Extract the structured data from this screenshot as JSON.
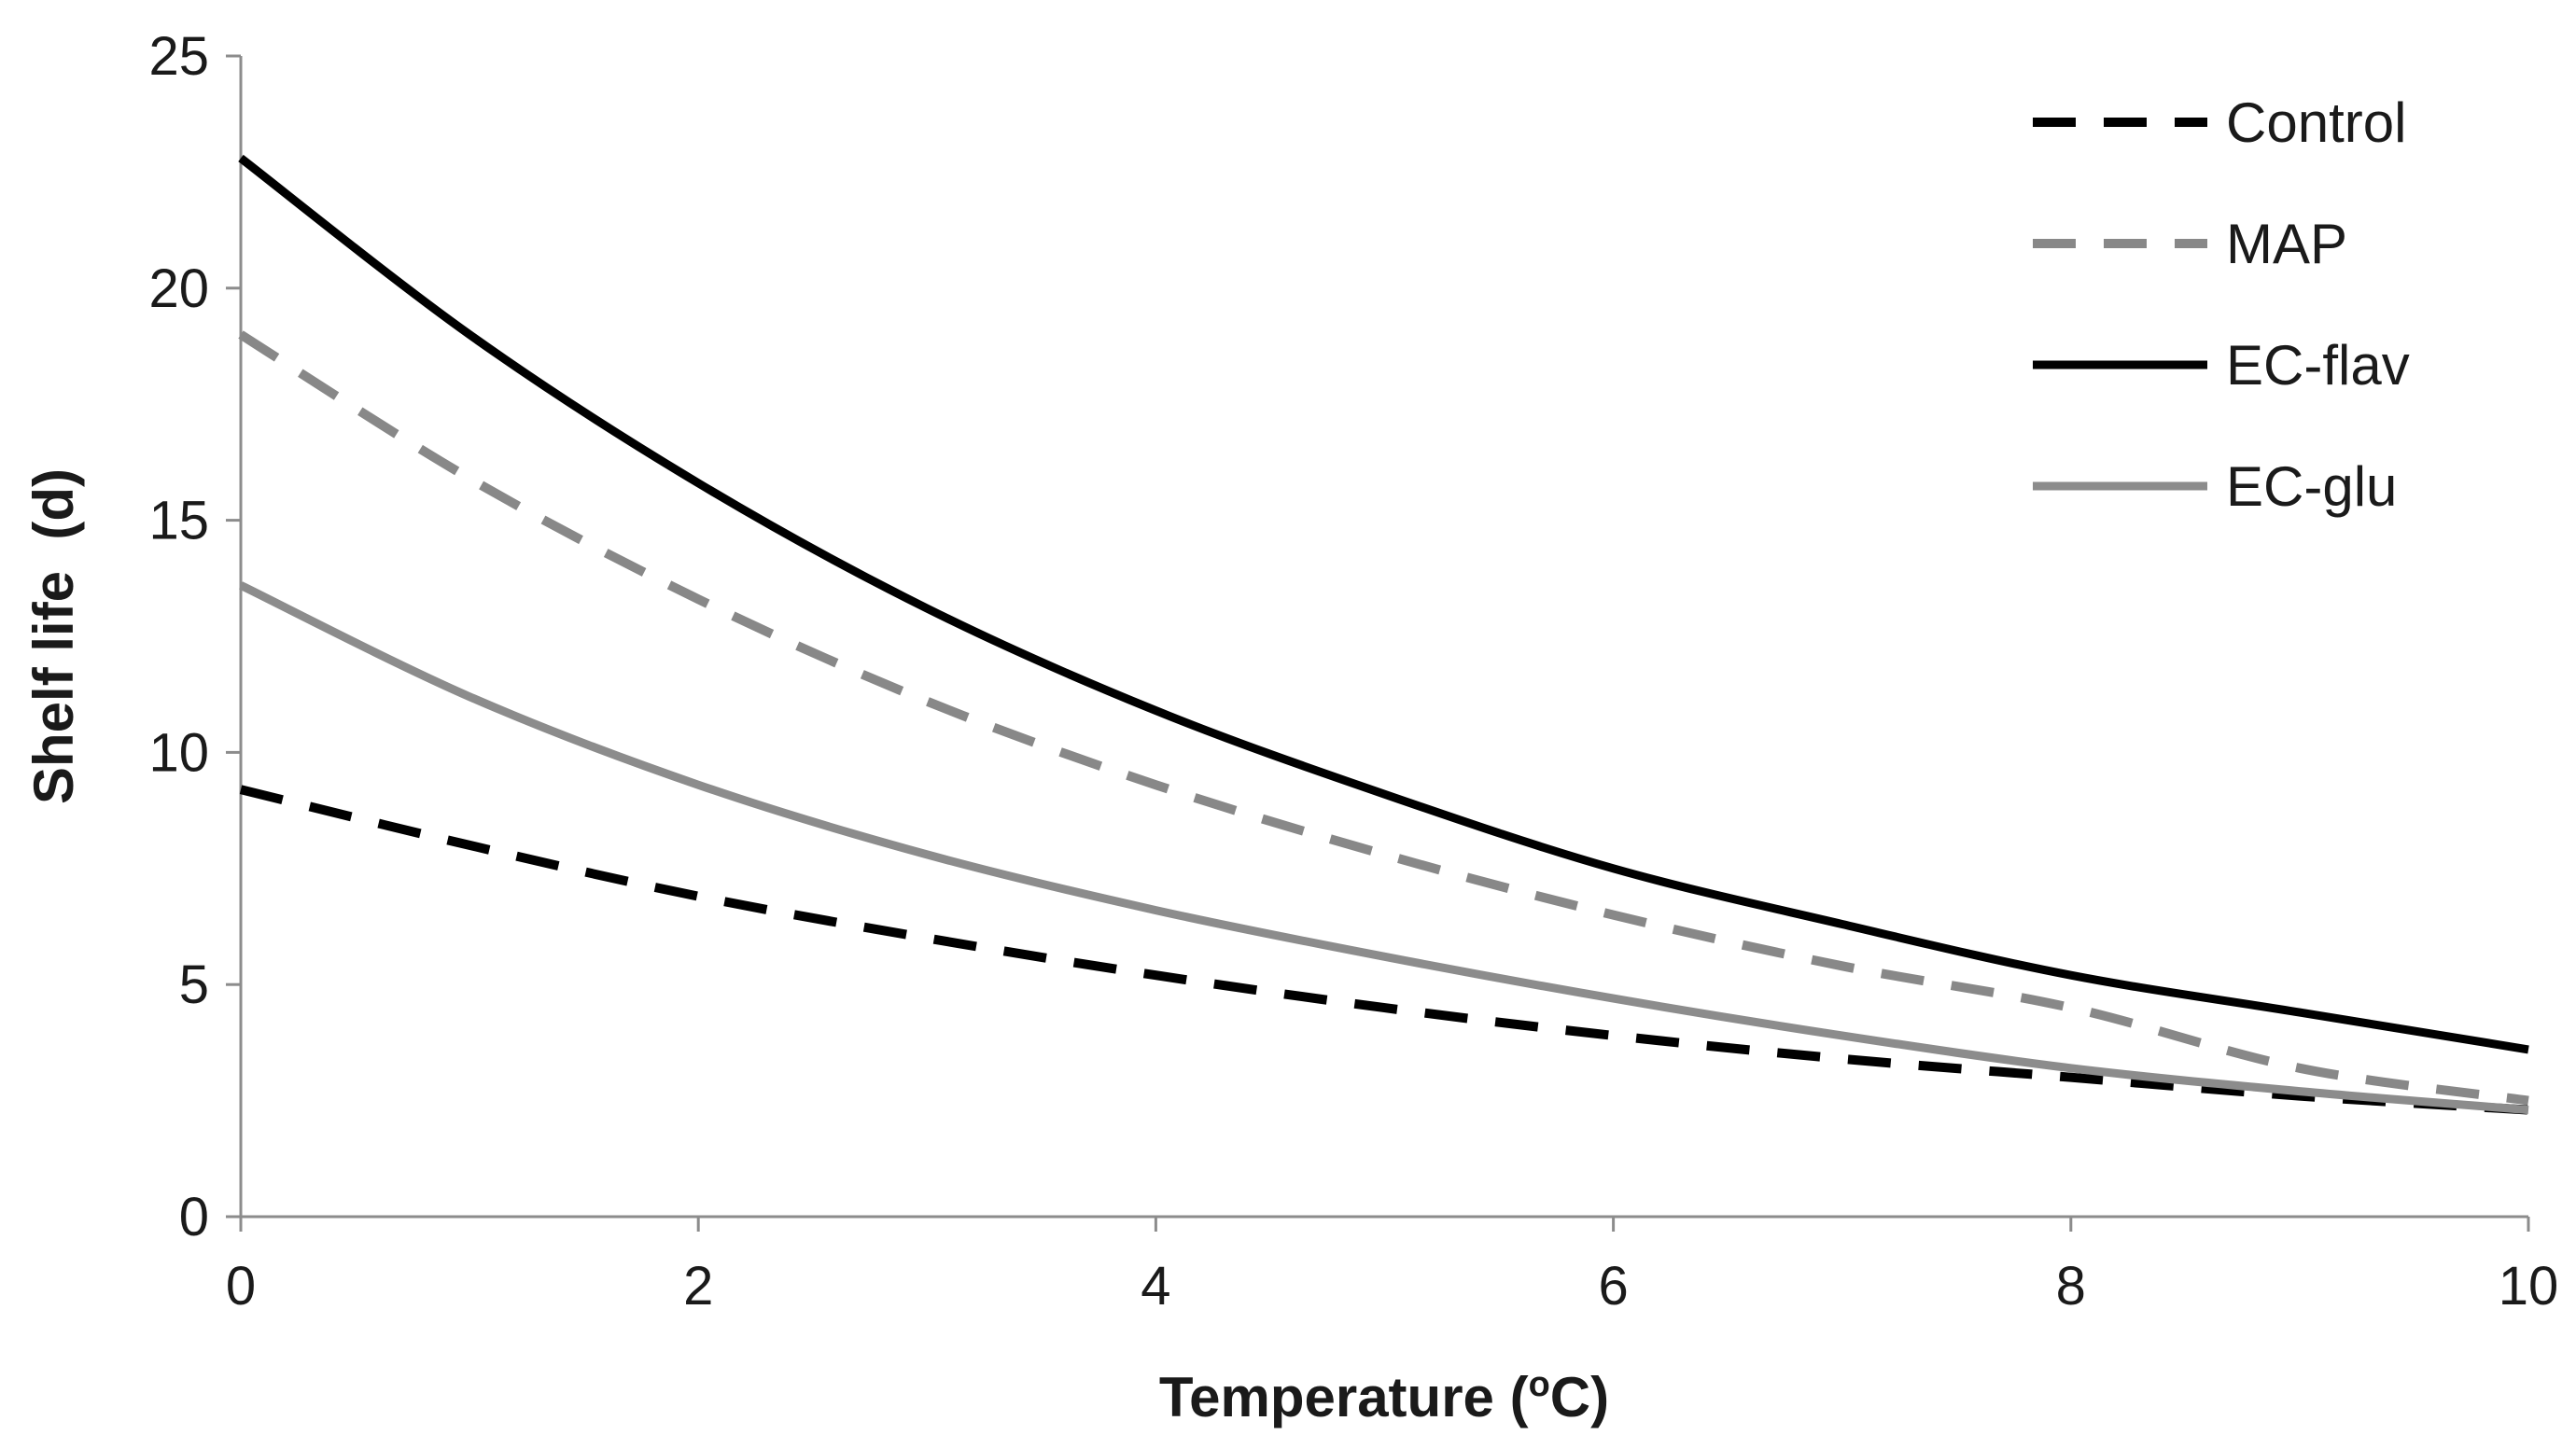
{
  "chart_data": {
    "type": "line",
    "title": "",
    "xlabel": "Temperature (",
    "xlabel_sup": "o",
    "xlabel_unit": "C)",
    "ylabel": "Shelf life  (d)",
    "xlim": [
      0,
      10
    ],
    "ylim": [
      0,
      25
    ],
    "x_ticks": [
      0,
      2,
      4,
      6,
      8,
      10
    ],
    "y_ticks": [
      0,
      5,
      10,
      15,
      20,
      25
    ],
    "x_tick_labels": [
      "0",
      "2",
      "4",
      "6",
      "8",
      "10"
    ],
    "y_tick_labels": [
      "0",
      "5",
      "10",
      "15",
      "20",
      "25"
    ],
    "grid": false,
    "legend_position": "top-right",
    "x": [
      0,
      1,
      2,
      3,
      4,
      5,
      6,
      7,
      8,
      9,
      10
    ],
    "series": [
      {
        "name": "Control",
        "color": "#000000",
        "style": "dashed",
        "values": [
          9.2,
          8.0,
          6.9,
          6.0,
          5.2,
          4.5,
          3.9,
          3.4,
          3.0,
          2.6,
          2.3
        ]
      },
      {
        "name": "MAP",
        "color": "#888888",
        "style": "dashed",
        "values": [
          19.0,
          15.9,
          13.3,
          11.1,
          9.3,
          7.8,
          6.5,
          5.4,
          4.5,
          3.2,
          2.5
        ]
      },
      {
        "name": "EC-flav",
        "color": "#000000",
        "style": "solid",
        "values": [
          22.8,
          19.0,
          15.8,
          13.1,
          10.9,
          9.1,
          7.5,
          6.3,
          5.2,
          4.4,
          3.6
        ]
      },
      {
        "name": "EC-glu",
        "color": "#8c8c8c",
        "style": "solid",
        "values": [
          13.6,
          11.2,
          9.3,
          7.8,
          6.6,
          5.6,
          4.7,
          3.9,
          3.2,
          2.7,
          2.3
        ]
      }
    ]
  }
}
